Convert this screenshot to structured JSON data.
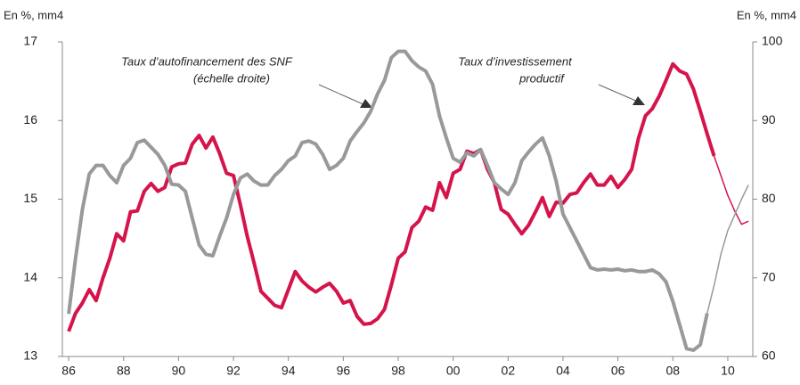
{
  "chart_data": {
    "type": "line",
    "y_label": "En %, mm4",
    "y2_label": "En %, mm4",
    "annotations": [
      [
        "Taux d’autofinancement des SNF",
        "(échelle droite)"
      ],
      [
        "Taux d’investissement",
        "productif"
      ]
    ],
    "x": [
      1986,
      1986.25,
      1986.5,
      1986.75,
      1987,
      1987.25,
      1987.5,
      1987.75,
      1988,
      1988.25,
      1988.5,
      1988.75,
      1989,
      1989.25,
      1989.5,
      1989.75,
      1990,
      1990.25,
      1990.5,
      1990.75,
      1991,
      1991.25,
      1991.5,
      1991.75,
      1992,
      1992.25,
      1992.5,
      1992.75,
      1993,
      1993.25,
      1993.5,
      1993.75,
      1994,
      1994.25,
      1994.5,
      1994.75,
      1995,
      1995.25,
      1995.5,
      1995.75,
      1996,
      1996.25,
      1996.5,
      1996.75,
      1997,
      1997.25,
      1997.5,
      1997.75,
      1998,
      1998.25,
      1998.5,
      1998.75,
      1999,
      1999.25,
      1999.5,
      1999.75,
      2000,
      2000.25,
      2000.5,
      2000.75,
      2001,
      2001.25,
      2001.5,
      2001.75,
      2002,
      2002.25,
      2002.5,
      2002.75,
      2003,
      2003.25,
      2003.5,
      2003.75,
      2004,
      2004.25,
      2004.5,
      2004.75,
      2005,
      2005.25,
      2005.5,
      2005.75,
      2006,
      2006.25,
      2006.5,
      2006.75,
      2007,
      2007.25,
      2007.5,
      2007.75,
      2008,
      2008.25,
      2008.5,
      2008.75,
      2009,
      2009.25,
      2009.5,
      2009.75,
      2010,
      2010.25,
      2010.5,
      2010.75
    ],
    "series": [
      {
        "name": "Taux d’investissement productif",
        "color": "#d4144a",
        "axis": "y",
        "forecast_start": 2009.5,
        "values": [
          13.32,
          13.55,
          13.68,
          13.85,
          13.71,
          14.0,
          14.25,
          14.56,
          14.47,
          14.84,
          14.85,
          15.1,
          15.2,
          15.1,
          15.15,
          15.41,
          15.45,
          15.46,
          15.7,
          15.81,
          15.65,
          15.79,
          15.58,
          15.33,
          15.3,
          14.93,
          14.53,
          14.19,
          13.83,
          13.74,
          13.65,
          13.62,
          13.85,
          14.08,
          13.96,
          13.88,
          13.82,
          13.88,
          13.93,
          13.83,
          13.68,
          13.71,
          13.51,
          13.41,
          13.42,
          13.48,
          13.6,
          13.91,
          14.25,
          14.33,
          14.64,
          14.72,
          14.9,
          14.86,
          15.21,
          15.02,
          15.33,
          15.38,
          15.61,
          15.58,
          15.63,
          15.38,
          15.21,
          14.87,
          14.81,
          14.68,
          14.56,
          14.67,
          14.84,
          15.02,
          14.78,
          14.96,
          14.95,
          15.06,
          15.08,
          15.21,
          15.32,
          15.18,
          15.18,
          15.29,
          15.15,
          15.25,
          15.38,
          15.78,
          16.06,
          16.15,
          16.31,
          16.51,
          16.72,
          16.63,
          16.59,
          16.4,
          16.12,
          15.83,
          15.55,
          15.3,
          15.05,
          14.85,
          14.68,
          14.72
        ]
      },
      {
        "name": "Taux d’autofinancement des SNF (échelle droite)",
        "color": "#999999",
        "axis": "y2",
        "forecast_start": 2009.25,
        "values": [
          65.4,
          72.5,
          78.7,
          83.2,
          84.3,
          84.3,
          83,
          82.1,
          84.3,
          85.2,
          87.2,
          87.5,
          86.6,
          85.7,
          84.3,
          81.9,
          81.8,
          81,
          77.6,
          74.2,
          73,
          72.8,
          75.3,
          77.6,
          80.6,
          82.7,
          83.2,
          82.3,
          81.8,
          81.8,
          83,
          83.8,
          84.9,
          85.5,
          87.2,
          87.4,
          87,
          85.7,
          83.8,
          84.3,
          85.2,
          87.4,
          88.6,
          89.7,
          91.2,
          93.4,
          95.1,
          98,
          98.8,
          98.8,
          97.6,
          96.8,
          96.3,
          94.6,
          90.6,
          87.8,
          85.2,
          84.7,
          85.9,
          85.5,
          86.3,
          84.3,
          82.1,
          81.3,
          80.6,
          82.1,
          84.9,
          86,
          87,
          87.8,
          85.5,
          82.3,
          78.1,
          76.4,
          74.7,
          73,
          71.3,
          71,
          71.1,
          71,
          71.1,
          70.9,
          71,
          70.8,
          70.8,
          71,
          70.5,
          69.5,
          67,
          64,
          61,
          60.8,
          61.5,
          65.5,
          69,
          73,
          76,
          78,
          80,
          81.8
        ]
      }
    ],
    "xlim": [
      1985.77,
      2010.91
    ],
    "xticks": [
      {
        "value": 1986,
        "label": "86"
      },
      {
        "value": 1988,
        "label": "88"
      },
      {
        "value": 1990,
        "label": "90"
      },
      {
        "value": 1992,
        "label": "92"
      },
      {
        "value": 1994,
        "label": "94"
      },
      {
        "value": 1996,
        "label": "96"
      },
      {
        "value": 1998,
        "label": "98"
      },
      {
        "value": 2000,
        "label": "00"
      },
      {
        "value": 2002,
        "label": "02"
      },
      {
        "value": 2004,
        "label": "04"
      },
      {
        "value": 2006,
        "label": "06"
      },
      {
        "value": 2008,
        "label": "08"
      },
      {
        "value": 2010,
        "label": "10"
      }
    ],
    "ylim": [
      13,
      17
    ],
    "yticks": [
      13,
      14,
      15,
      16,
      17
    ],
    "y2lim": [
      60,
      100
    ],
    "y2ticks": [
      60,
      70,
      80,
      90,
      100
    ]
  }
}
